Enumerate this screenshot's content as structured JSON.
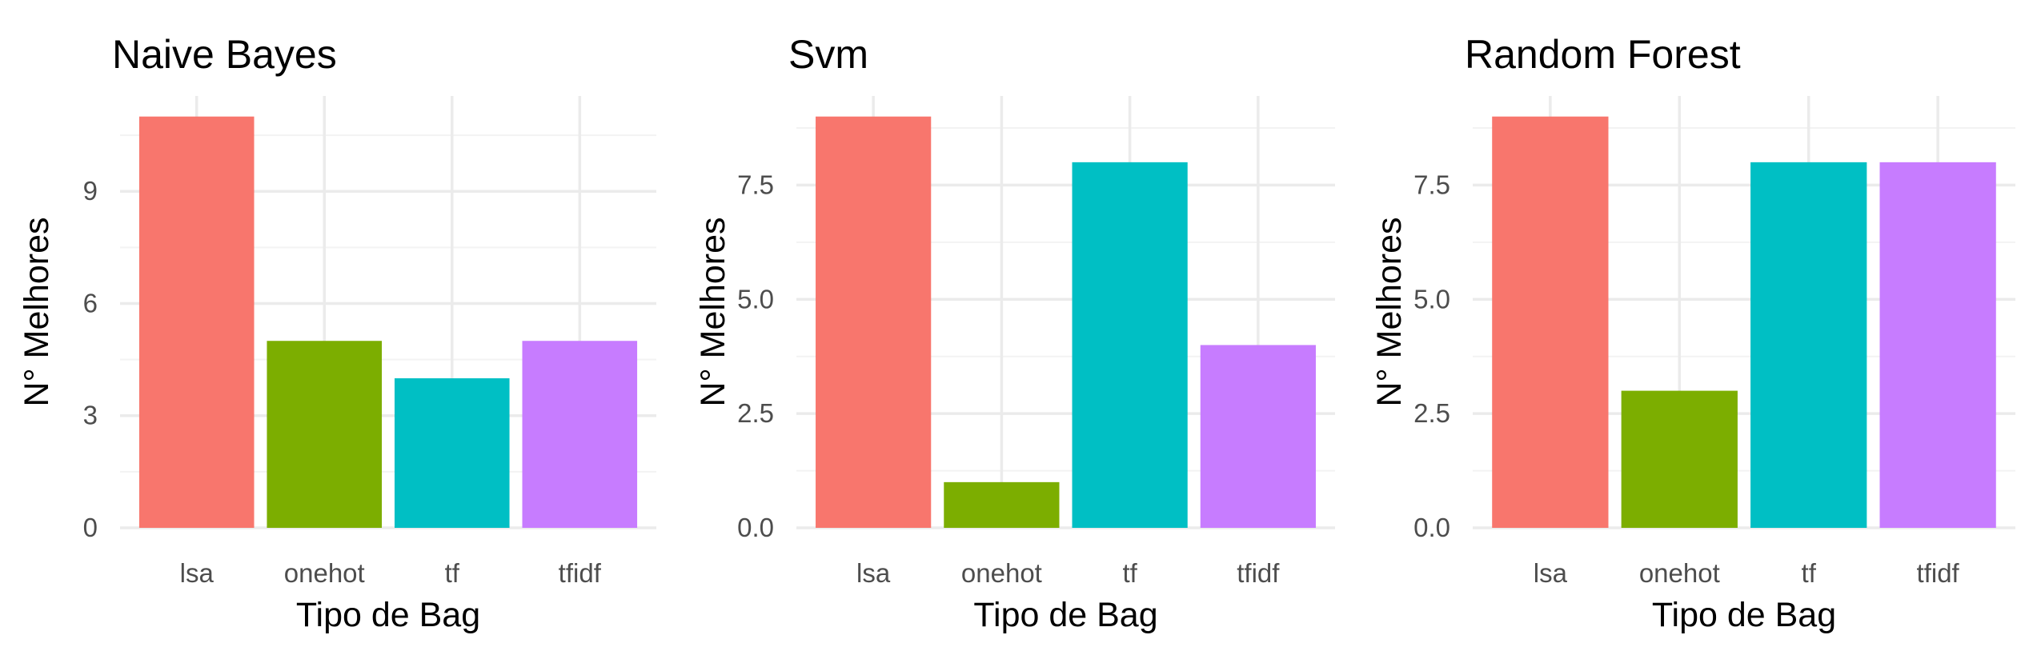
{
  "chart_data": [
    {
      "type": "bar",
      "title": "Naive Bayes",
      "xlabel": "Tipo de Bag",
      "ylabel": "N° Melhores",
      "categories": [
        "lsa",
        "onehot",
        "tf",
        "tfidf"
      ],
      "values": [
        11,
        5,
        4,
        5
      ],
      "ylim": [
        0,
        11.55
      ],
      "yticks": [
        0,
        3,
        6,
        9
      ],
      "ytick_labels": [
        "0",
        "3",
        "6",
        "9"
      ],
      "grid": true,
      "legend": "none"
    },
    {
      "type": "bar",
      "title": "Svm",
      "xlabel": "Tipo de Bag",
      "ylabel": "N° Melhores",
      "categories": [
        "lsa",
        "onehot",
        "tf",
        "tfidf"
      ],
      "values": [
        9,
        1,
        8,
        4
      ],
      "ylim": [
        0,
        9.45
      ],
      "yticks": [
        0,
        2.5,
        5,
        7.5
      ],
      "ytick_labels": [
        "0.0",
        "2.5",
        "5.0",
        "7.5"
      ],
      "grid": true,
      "legend": "none"
    },
    {
      "type": "bar",
      "title": "Random Forest",
      "xlabel": "Tipo de Bag",
      "ylabel": "N° Melhores",
      "categories": [
        "lsa",
        "onehot",
        "tf",
        "tfidf"
      ],
      "values": [
        9,
        3,
        8,
        8
      ],
      "ylim": [
        0,
        9.45
      ],
      "yticks": [
        0,
        2.5,
        5,
        7.5
      ],
      "ytick_labels": [
        "0.0",
        "2.5",
        "5.0",
        "7.5"
      ],
      "grid": true,
      "legend": "none"
    }
  ],
  "colors": {
    "lsa": "#F8766D",
    "onehot": "#7CAE00",
    "tf": "#00BFC4",
    "tfidf": "#C77CFF"
  }
}
